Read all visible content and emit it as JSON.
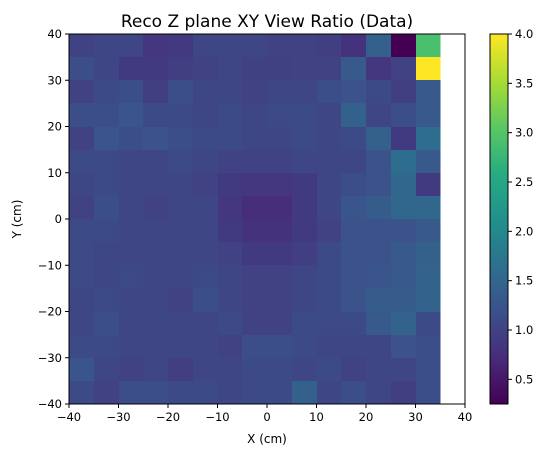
{
  "chart_data": {
    "type": "heatmap",
    "title": "Reco Z plane XY View Ratio (Data)",
    "xlabel": "X (cm)",
    "ylabel": "Y (cm)",
    "xlim": [
      -40,
      40
    ],
    "ylim": [
      -40,
      40
    ],
    "x_ticks": [
      "−40",
      "−30",
      "−20",
      "−10",
      "0",
      "10",
      "20",
      "30",
      "40"
    ],
    "y_ticks": [
      "−40",
      "−30",
      "−20",
      "−10",
      "0",
      "10",
      "20",
      "30",
      "40"
    ],
    "colorbar": {
      "colormap": "viridis",
      "range": [
        0.25,
        4.0
      ],
      "ticks": [
        "0.5",
        "1.0",
        "1.5",
        "2.0",
        "2.5",
        "3.0",
        "3.5",
        "4.0"
      ]
    },
    "grid": false,
    "bin_size": 5,
    "values_note_rows": "rows listed from y=35..40 down to y=-40..-35, columns from x=-40 to x=40",
    "values": [
      [
        1.0,
        1.05,
        1.05,
        0.85,
        0.9,
        1.05,
        1.05,
        1.05,
        1.0,
        1.0,
        0.95,
        0.8,
        1.4,
        0.25,
        2.9,
        null
      ],
      [
        1.15,
        1.05,
        0.9,
        0.9,
        0.95,
        1.0,
        1.05,
        0.98,
        0.98,
        1.0,
        1.0,
        1.3,
        0.85,
        1.0,
        4.0,
        null
      ],
      [
        1.0,
        1.1,
        1.15,
        0.95,
        1.15,
        1.05,
        1.05,
        1.0,
        1.05,
        1.05,
        1.15,
        1.2,
        1.1,
        0.95,
        1.3,
        null
      ],
      [
        1.15,
        1.15,
        1.25,
        1.1,
        1.1,
        1.05,
        1.1,
        1.05,
        1.1,
        1.1,
        1.05,
        1.4,
        1.05,
        1.15,
        1.3,
        null
      ],
      [
        1.0,
        1.25,
        1.15,
        1.2,
        1.15,
        1.1,
        1.1,
        1.05,
        1.05,
        1.1,
        1.05,
        1.1,
        1.4,
        0.9,
        1.6,
        null
      ],
      [
        1.1,
        1.1,
        1.05,
        1.05,
        1.1,
        1.05,
        1.0,
        1.0,
        1.0,
        1.05,
        1.05,
        1.05,
        1.2,
        1.6,
        1.3,
        null
      ],
      [
        1.05,
        1.1,
        1.05,
        1.05,
        1.05,
        1.0,
        0.9,
        0.85,
        0.85,
        0.9,
        1.05,
        1.15,
        1.2,
        1.5,
        0.9,
        null
      ],
      [
        1.0,
        1.15,
        1.05,
        1.0,
        1.05,
        1.05,
        0.85,
        0.75,
        0.75,
        0.9,
        1.05,
        1.25,
        1.35,
        1.5,
        1.5,
        null
      ],
      [
        1.1,
        1.1,
        1.05,
        1.05,
        1.05,
        1.05,
        0.9,
        0.8,
        0.8,
        0.9,
        1.0,
        1.2,
        1.2,
        1.2,
        1.3,
        null
      ],
      [
        1.1,
        1.05,
        1.05,
        1.05,
        1.05,
        1.05,
        1.0,
        0.9,
        0.9,
        0.95,
        1.1,
        1.2,
        1.2,
        1.3,
        1.4,
        null
      ],
      [
        1.1,
        1.05,
        1.1,
        1.05,
        1.05,
        1.1,
        1.05,
        1.0,
        1.0,
        1.05,
        1.1,
        1.2,
        1.25,
        1.3,
        1.45,
        null
      ],
      [
        1.05,
        1.1,
        1.05,
        1.05,
        1.0,
        1.15,
        1.05,
        1.0,
        1.0,
        1.05,
        1.1,
        1.2,
        1.35,
        1.35,
        1.45,
        null
      ],
      [
        1.05,
        1.15,
        1.05,
        1.05,
        1.05,
        1.05,
        1.1,
        1.0,
        1.0,
        1.1,
        1.1,
        1.1,
        1.3,
        1.45,
        1.1,
        null
      ],
      [
        1.1,
        1.1,
        1.05,
        1.05,
        1.05,
        1.05,
        1.0,
        1.15,
        1.15,
        1.1,
        1.05,
        1.05,
        1.05,
        1.2,
        1.15,
        null
      ],
      [
        1.25,
        1.05,
        1.0,
        1.05,
        0.95,
        1.05,
        1.05,
        1.1,
        1.1,
        1.05,
        1.1,
        1.0,
        1.05,
        1.05,
        1.15,
        null
      ],
      [
        1.1,
        1.0,
        1.15,
        1.15,
        1.1,
        1.1,
        1.05,
        1.1,
        1.1,
        1.4,
        1.05,
        1.15,
        1.05,
        0.95,
        1.15,
        null
      ]
    ]
  }
}
